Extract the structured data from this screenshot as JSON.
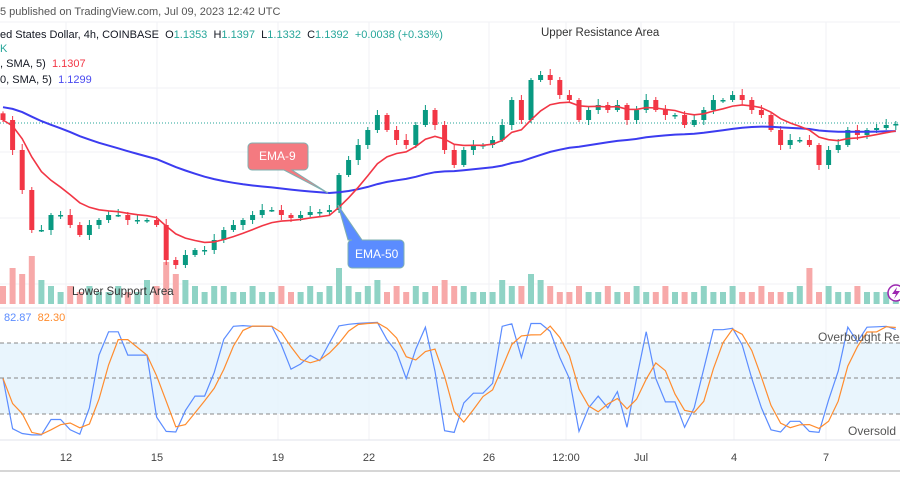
{
  "header": {
    "published": "5 published on TradingView.com, Jul 09, 2023 12:42 UTC",
    "symbol": "ed States Dollar, 4h, COINBASE",
    "ohlc": {
      "open_label": "O",
      "open": "1.1353",
      "high_label": "H",
      "high": "1.1397",
      "low_label": "L",
      "low": "1.1332",
      "close_label": "C",
      "close": "1.1392",
      "change": "+0.0038 (+0.33%)"
    },
    "volume_line": "K",
    "ma1": {
      "label": ", SMA, 5)",
      "value": "1.1307",
      "color": "#f23645"
    },
    "ma2": {
      "label": "0, SMA, 5)",
      "value": "1.1299",
      "color": "#4a4af0"
    }
  },
  "annotations": {
    "upper": "Upper Resistance Area",
    "lower": "Lower Support Area",
    "ema9": "EMA-9",
    "ema50": "EMA-50"
  },
  "stoch": {
    "k_value": "82.87",
    "d_value": "82.30",
    "k_color": "#5b8cff",
    "d_color": "#ff8c2e",
    "overbought": "Overbought Reg",
    "oversold": "Oversold",
    "upper_band": 80,
    "lower_band": 20
  },
  "x_axis": [
    "12",
    "15",
    "19",
    "22",
    "26",
    "12:00",
    "Jul",
    "4",
    "7"
  ],
  "colors": {
    "up": "#089981",
    "down": "#f23645",
    "ema9": "#f23645",
    "ema50": "#3c3cf0",
    "band": "#e3f2fd"
  },
  "chart_data": {
    "type": "candlestick",
    "title": "",
    "interval": "4h",
    "last_close": 1.1392,
    "closes": [
      1.1404,
      1.1314,
      1.1194,
      1.1074,
      1.1074,
      1.1119,
      1.1119,
      1.1089,
      1.1059,
      1.1089,
      1.1104,
      1.1119,
      1.1119,
      1.1104,
      1.1104,
      1.1104,
      1.1089,
      1.0984,
      1.0969,
      1.0999,
      1.1014,
      1.1014,
      1.1044,
      1.1074,
      1.1089,
      1.1104,
      1.1119,
      1.1134,
      1.1134,
      1.1119,
      1.111,
      1.1119,
      1.1128,
      1.1128,
      1.1134,
      1.1239,
      1.1284,
      1.1329,
      1.1374,
      1.1419,
      1.1374,
      1.1344,
      1.1329,
      1.1389,
      1.1434,
      1.1389,
      1.1314,
      1.1269,
      1.1314,
      1.1329,
      1.1329,
      1.1344,
      1.1389,
      1.1464,
      1.1404,
      1.1524,
      1.1539,
      1.1524,
      1.1479,
      1.1464,
      1.1404,
      1.1434,
      1.1449,
      1.1434,
      1.1449,
      1.1404,
      1.1434,
      1.1464,
      1.1434,
      1.1419,
      1.1419,
      1.1389,
      1.1404,
      1.1434,
      1.1464,
      1.1464,
      1.1479,
      1.1464,
      1.1434,
      1.1419,
      1.1374,
      1.1329,
      1.1344,
      1.1344,
      1.1329,
      1.1269,
      1.1314,
      1.1329,
      1.1374,
      1.1359,
      1.1374,
      1.138,
      1.1389,
      1.1392
    ],
    "volumes": [
      3,
      6,
      5,
      8,
      4,
      3,
      2,
      3,
      2,
      3,
      2,
      2,
      3,
      2,
      2,
      4,
      3,
      7,
      5,
      4,
      3,
      2,
      3,
      3,
      2,
      2,
      3,
      2,
      2,
      3,
      2,
      2,
      3,
      2,
      3,
      6,
      3,
      2,
      3,
      4,
      2,
      3,
      2,
      3,
      2,
      3,
      4,
      3,
      3,
      2,
      2,
      2,
      4,
      3,
      3,
      5,
      4,
      3,
      2,
      2,
      3,
      2,
      2,
      3,
      2,
      2,
      3,
      2,
      2,
      3,
      2,
      2,
      2,
      3,
      2,
      2,
      3,
      2,
      2,
      3,
      2,
      2,
      2,
      3,
      6,
      2,
      3,
      2,
      2,
      3,
      2,
      2,
      2,
      2
    ],
    "ema_periods": [
      9,
      50
    ],
    "stoch_bands": [
      20,
      50,
      80
    ]
  }
}
